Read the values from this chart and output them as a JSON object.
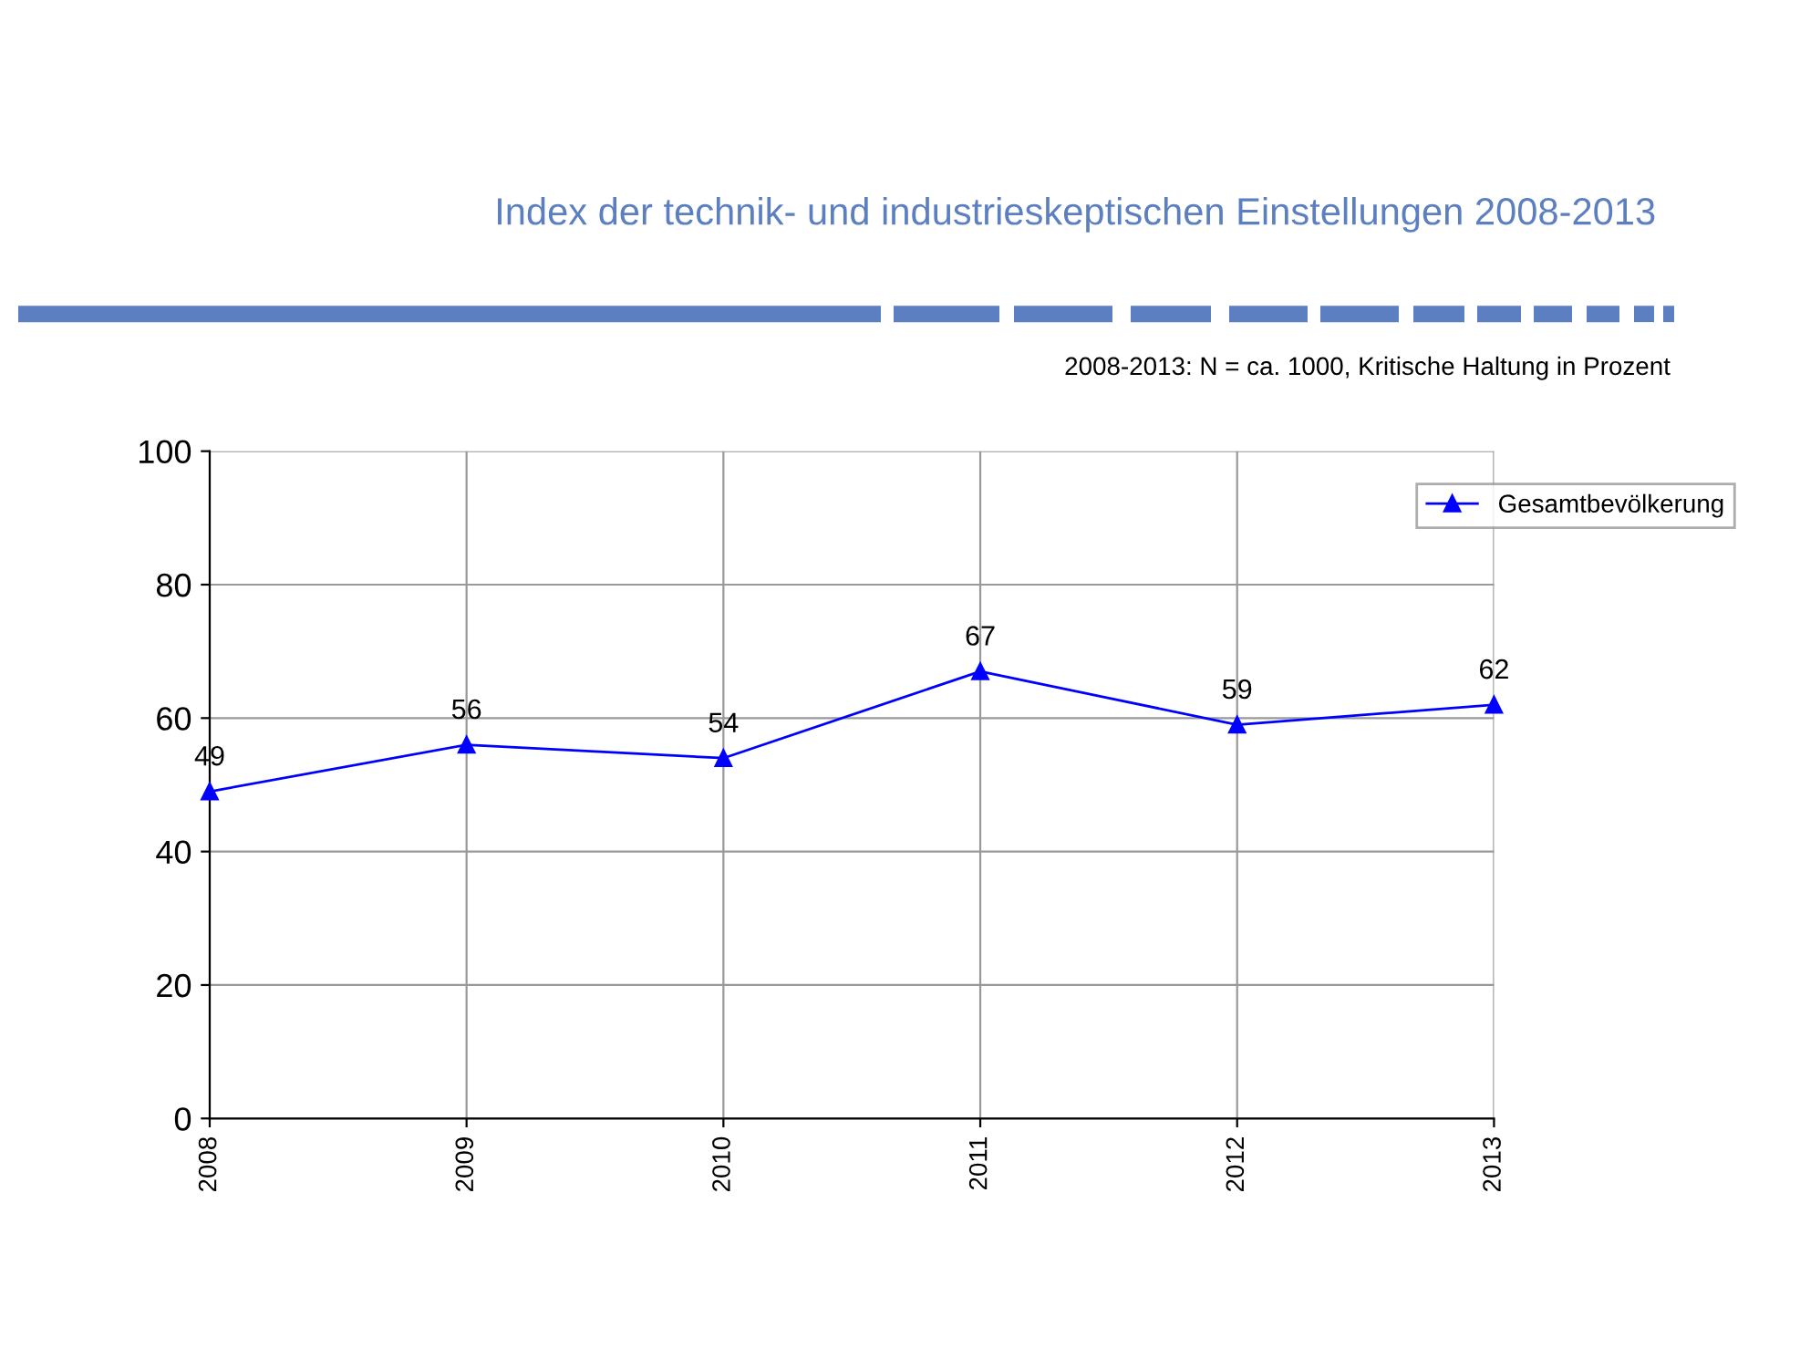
{
  "chart_data": {
    "type": "line",
    "title": "Index der technik- und industrieskeptischen Einstellungen 2008-2013",
    "subtitle": "2008-2013: N = ca. 1000, Kritische Haltung in Prozent",
    "categories": [
      "2008",
      "2009",
      "2010",
      "2011",
      "2012",
      "2013"
    ],
    "series": [
      {
        "name": "Gesamtbevölkerung",
        "color": "#0000ff",
        "values": [
          49,
          56,
          54,
          67,
          59,
          62
        ]
      }
    ],
    "ylim": [
      0,
      100
    ],
    "yticks": [
      0,
      20,
      40,
      60,
      80,
      100
    ],
    "grid": true,
    "legend": "top right",
    "marker": "triangle",
    "line_style": "solid",
    "data_labels": true
  }
}
